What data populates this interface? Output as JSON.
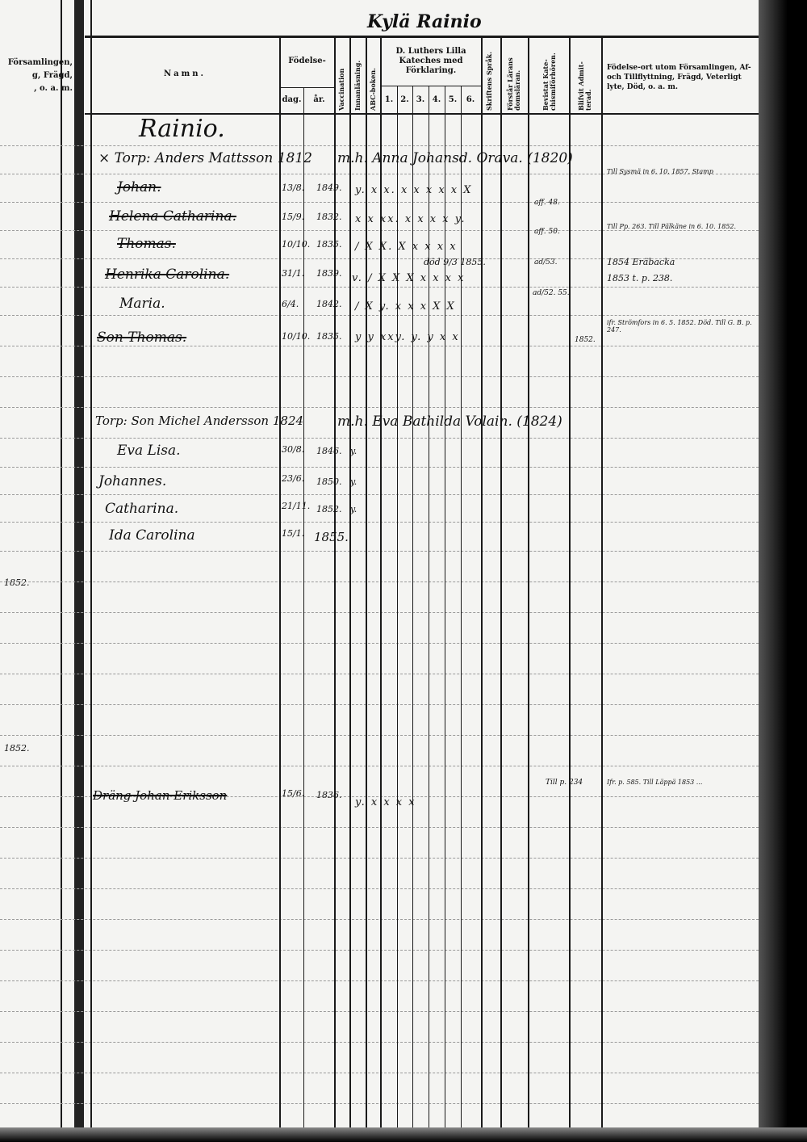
{
  "page_header": {
    "handwritten_title": "Kylä Rainio"
  },
  "left_page": {
    "header_lines": [
      "Församlingen,",
      "g, Frägd,",
      ", o. a. m."
    ],
    "margin_notes": [
      "1852.",
      "1852."
    ]
  },
  "columns": {
    "namn": "Namn.",
    "fodelse": "Födelse-",
    "dag": "dag.",
    "ar": "år.",
    "vaccination": "Vaccination",
    "innanlasning": "Innanläsning.",
    "abc": "ABC-boken.",
    "katekes": "D. Luthers Lilla Kateches med Förklaring.",
    "katekes_sub": [
      "1.",
      "2.",
      "3.",
      "4.",
      "5.",
      "6."
    ],
    "skriftens": "Skriftens Språk.",
    "forstar": "Förstår Lärans domsläran.",
    "bevistat": "Bevistat Kate- chismiförhören.",
    "blifvit": "Blifvit Admit- terad.",
    "fodelseort": "Födelse-ort utom Församlingen, Af- och Tillflyttning, Frägd, Veterligt lyte, Död, o. a. m."
  },
  "entries": [
    {
      "name": "Rainio.",
      "type": "heading"
    },
    {
      "name": "× Torp: Anders Mattsson 1812",
      "birth": "",
      "marks": "m.h. Anna Johansd. Orava. (1820)"
    },
    {
      "name": "Johan.",
      "struck": true,
      "day": "13/8.",
      "year": "1849.",
      "marks": "y. x x. x x x x x  X",
      "note_mid": "aff. 48.",
      "note_right": "Till Sysmä in 6. 10. 1857. Stamp"
    },
    {
      "name": "Helena Catharina.",
      "struck": true,
      "day": "15/9.",
      "year": "1832.",
      "marks": "x x xx. x x x x  y.",
      "note_mid": "aff. 50.",
      "note_right": "Till Pp. 263. Till Pälkäne in 6. 10. 1852."
    },
    {
      "name": "Thomas.",
      "struck": true,
      "day": "10/10.",
      "year": "1835.",
      "marks": "/ X X. X x x x x",
      "note_mid": "ad/53.",
      "note_right": "1854 Eräbacka"
    },
    {
      "name": "Henrika Carolina.",
      "struck": true,
      "day": "31/1.",
      "year": "1839.",
      "marks": "v. / X X X x x x x",
      "annotation": "död 9/3 1855.",
      "note_mid": "ad/52. 55.",
      "note_right": "1853 t. p. 238."
    },
    {
      "name": "Maria.",
      "day": "6/4.",
      "year": "1842.",
      "marks": "/ X y. x x x X X"
    },
    {
      "name": "Son Thomas.",
      "struck": true,
      "day": "10/10.",
      "year": "1835.",
      "marks": "y y xxy. y. y x x",
      "note_mid": "1852.",
      "note_right": "ifr. Strömfors in 6. 5. 1852. Död. Till G. B. p. 247."
    },
    {
      "name": "Torp: Son Michel Andersson 1824",
      "marks": "m.h. Eva Bathilda Volain. (1824)"
    },
    {
      "name": "Eva Lisa.",
      "day": "30/8.",
      "year": "1846.",
      "marks": "y."
    },
    {
      "name": "Johannes.",
      "day": "23/6.",
      "year": "1850.",
      "marks": "y."
    },
    {
      "name": "Catharina.",
      "day": "21/11.",
      "year": "1852.",
      "marks": "y."
    },
    {
      "name": "Ida Carolina",
      "day": "15/1.",
      "year": "1855."
    },
    {
      "name": "Dräng Johan Eriksson",
      "struck": true,
      "day": "15/6.",
      "year": "1836.",
      "marks": "y. x x x x",
      "note_mid": "Till p. 234",
      "note_right": "Ifr. p. 585. Till Läppä 1853 ..."
    }
  ]
}
